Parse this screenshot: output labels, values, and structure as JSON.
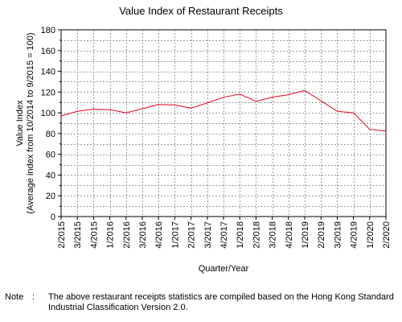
{
  "chart_data": {
    "type": "line",
    "title": "Value Index of Restaurant Receipts",
    "xlabel": "Quarter/Year",
    "ylabel_line1": "Value Index",
    "ylabel_line2": "(Average index from 10/2014 to 9/2015 = 100)",
    "ylim": [
      0,
      180
    ],
    "y_ticks": [
      "0",
      "20",
      "40",
      "60",
      "80",
      "100",
      "120",
      "140",
      "160",
      "180"
    ],
    "y_tick_values": [
      0,
      20,
      40,
      60,
      80,
      100,
      120,
      140,
      160,
      180
    ],
    "y_minor_step": 10,
    "grid": true,
    "categories": [
      "2/2015",
      "3/2015",
      "4/2015",
      "1/2016",
      "2/2016",
      "3/2016",
      "4/2016",
      "1/2017",
      "2/2017",
      "3/2017",
      "4/2017",
      "1/2018",
      "2/2018",
      "3/2018",
      "4/2018",
      "1/2019",
      "2/2019",
      "3/2019",
      "4/2019",
      "1/2020",
      "2/2020"
    ],
    "series": [
      {
        "color": "#e8001c",
        "values": [
          97.0,
          101.5,
          103.5,
          103.0,
          100.0,
          104.0,
          108.0,
          107.5,
          104.5,
          109.5,
          115.0,
          118.0,
          111.0,
          115.0,
          117.5,
          121.5,
          111.5,
          101.5,
          100.0,
          84.0,
          82.5
        ]
      }
    ]
  },
  "note": {
    "label": "Note",
    "colon": ":",
    "text": "The above restaurant receipts statistics are compiled based on the Hong Kong Standard Industrial Classification Version 2.0."
  }
}
